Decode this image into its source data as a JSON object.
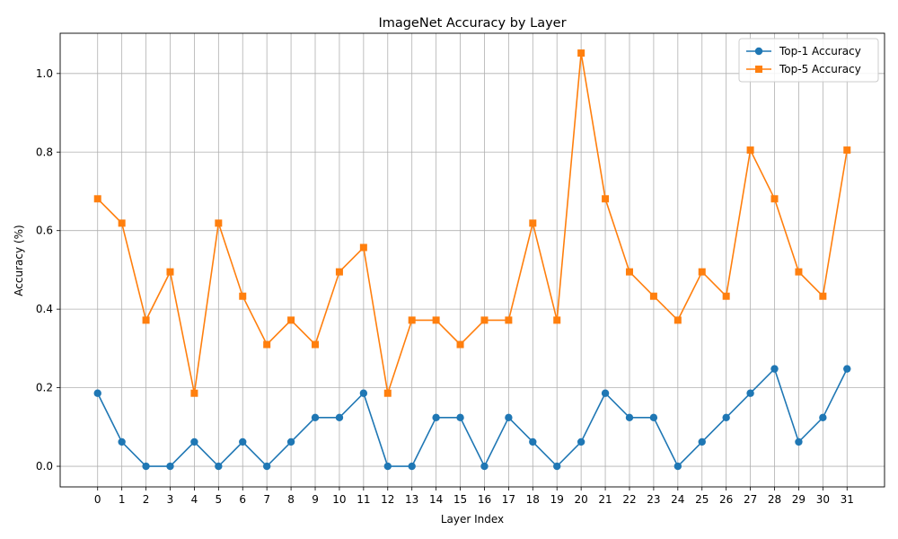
{
  "chart_data": {
    "type": "line",
    "title": "ImageNet Accuracy by Layer",
    "xlabel": "Layer Index",
    "ylabel": "Accuracy (%)",
    "x": [
      0,
      1,
      2,
      3,
      4,
      5,
      6,
      7,
      8,
      9,
      10,
      11,
      12,
      13,
      14,
      15,
      16,
      17,
      18,
      19,
      20,
      21,
      22,
      23,
      24,
      25,
      26,
      27,
      28,
      29,
      30,
      31
    ],
    "ylim": [
      -0.0525,
      1.1025
    ],
    "yticks": [
      0.0,
      0.2,
      0.4,
      0.6,
      0.8,
      1.0
    ],
    "ytick_labels": [
      "0.0",
      "0.2",
      "0.4",
      "0.6",
      "0.8",
      "1.0"
    ],
    "grid": true,
    "legend_position": "top-right",
    "series": [
      {
        "name": "Top-1 Accuracy",
        "color": "#1f77b4",
        "marker": "circle",
        "values": [
          0.186,
          0.062,
          0.0,
          0.0,
          0.062,
          0.0,
          0.062,
          0.0,
          0.062,
          0.124,
          0.124,
          0.186,
          0.0,
          0.0,
          0.124,
          0.124,
          0.0,
          0.124,
          0.062,
          0.0,
          0.062,
          0.186,
          0.124,
          0.124,
          0.0,
          0.062,
          0.124,
          0.186,
          0.248,
          0.062,
          0.124,
          0.248
        ]
      },
      {
        "name": "Top-5 Accuracy",
        "color": "#ff7f0e",
        "marker": "square",
        "values": [
          0.681,
          0.619,
          0.372,
          0.495,
          0.186,
          0.619,
          0.433,
          0.31,
          0.372,
          0.31,
          0.495,
          0.557,
          0.186,
          0.372,
          0.372,
          0.31,
          0.372,
          0.372,
          0.619,
          0.372,
          1.052,
          0.681,
          0.495,
          0.433,
          0.372,
          0.495,
          0.433,
          0.805,
          0.681,
          0.495,
          0.433,
          0.805
        ]
      }
    ]
  }
}
